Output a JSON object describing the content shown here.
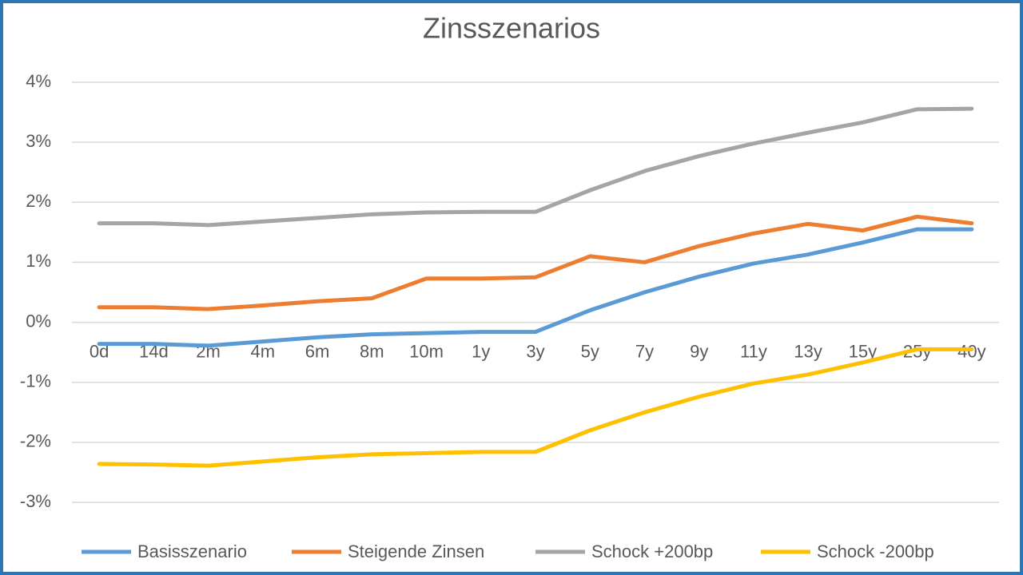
{
  "chart_data": {
    "type": "line",
    "title": "Zinsszenarios",
    "categories": [
      "0d",
      "14d",
      "2m",
      "4m",
      "6m",
      "8m",
      "10m",
      "1y",
      "3y",
      "5y",
      "7y",
      "9y",
      "11y",
      "13y",
      "15y",
      "25y",
      "40y"
    ],
    "series": [
      {
        "name": "Basisszenario",
        "color": "#5b9bd5",
        "values": [
          -0.36,
          -0.36,
          -0.39,
          -0.32,
          -0.25,
          -0.2,
          -0.18,
          -0.16,
          -0.16,
          0.2,
          0.5,
          0.76,
          0.98,
          1.13,
          1.33,
          1.55,
          1.55
        ]
      },
      {
        "name": "Steigende Zinsen",
        "color": "#ed7d31",
        "values": [
          0.25,
          0.25,
          0.22,
          0.28,
          0.35,
          0.4,
          0.73,
          0.73,
          0.75,
          1.1,
          1.0,
          1.27,
          1.48,
          1.64,
          1.53,
          1.76,
          1.65
        ]
      },
      {
        "name": "Schock +200bp",
        "color": "#a5a5a5",
        "values": [
          1.65,
          1.65,
          1.62,
          1.68,
          1.74,
          1.8,
          1.83,
          1.84,
          1.84,
          2.2,
          2.52,
          2.77,
          2.98,
          3.16,
          3.33,
          3.55,
          3.56
        ]
      },
      {
        "name": "Schock -200bp",
        "color": "#ffc000",
        "values": [
          -2.36,
          -2.37,
          -2.39,
          -2.32,
          -2.25,
          -2.2,
          -2.18,
          -2.16,
          -2.16,
          -1.8,
          -1.5,
          -1.24,
          -1.02,
          -0.87,
          -0.67,
          -0.45,
          -0.45
        ]
      }
    ],
    "ylim": [
      -3,
      4
    ],
    "yticks": [
      {
        "value": -3,
        "label": "-3%"
      },
      {
        "value": -2,
        "label": "-2%"
      },
      {
        "value": -1,
        "label": "-1%"
      },
      {
        "value": 0,
        "label": "0%"
      },
      {
        "value": 1,
        "label": "1%"
      },
      {
        "value": 2,
        "label": "2%"
      },
      {
        "value": 3,
        "label": "3%"
      },
      {
        "value": 4,
        "label": "4%"
      }
    ],
    "grid": true,
    "legend": "bottom"
  }
}
